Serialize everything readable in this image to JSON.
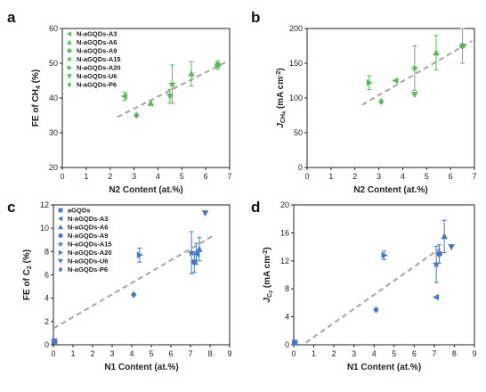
{
  "chart_data": [
    {
      "panel": "a",
      "type": "scatter",
      "xlabel": "N2 Content (at.%)",
      "ylabel_parts": [
        "FE of CH",
        "4",
        " (%)"
      ],
      "xlim": [
        0,
        7
      ],
      "ylim": [
        20,
        60
      ],
      "xticks": [
        0,
        1,
        2,
        3,
        4,
        5,
        6,
        7
      ],
      "yticks": [
        20,
        30,
        40,
        50,
        60
      ],
      "color": "#5cb85c",
      "legend_position": "top-left",
      "legend": [
        "N-aGQDs-A3",
        "N-aGQDs-A6",
        "N-aGQDs-A9",
        "N-aGQDs-A15",
        "N-aGQDs-A20",
        "N-aGQDs-U6",
        "N-aGQDs-P6"
      ],
      "markers": [
        "tri-left",
        "tri-up",
        "circle",
        "star",
        "tri-right",
        "tri-down",
        "diamond"
      ],
      "points": [
        {
          "marker": "tri-left",
          "x": 2.6,
          "y": 40.5,
          "err": 1.2
        },
        {
          "marker": "diamond",
          "x": 3.1,
          "y": 35,
          "err": 0
        },
        {
          "marker": "tri-up",
          "x": 3.7,
          "y": 38.5,
          "err": 0
        },
        {
          "marker": "tri-down",
          "x": 4.5,
          "y": 40.5,
          "err": 2.0
        },
        {
          "marker": "star",
          "x": 4.6,
          "y": 44,
          "err": 5.5
        },
        {
          "marker": "tri-up",
          "x": 5.4,
          "y": 47,
          "err": 3.5
        },
        {
          "marker": "circle",
          "x": 6.5,
          "y": 49.5,
          "err": 1.2
        }
      ],
      "fit_line": {
        "x": [
          2.3,
          6.9
        ],
        "y": [
          34.5,
          50.5
        ]
      }
    },
    {
      "panel": "b",
      "type": "scatter",
      "xlabel": "N2 Content (at.%)",
      "ylabel_parts": [
        "J",
        "CH",
        "4",
        " (mA cm",
        "-2",
        ")"
      ],
      "xlim": [
        0,
        7
      ],
      "ylim": [
        0,
        200
      ],
      "xticks": [
        0,
        1,
        2,
        3,
        4,
        5,
        6,
        7
      ],
      "yticks": [
        0,
        50,
        100,
        150,
        200
      ],
      "color": "#5cb85c",
      "points": [
        {
          "marker": "tri-right",
          "x": 2.6,
          "y": 122,
          "err": 10
        },
        {
          "marker": "diamond",
          "x": 3.1,
          "y": 95,
          "err": 0
        },
        {
          "marker": "tri-left",
          "x": 3.7,
          "y": 125,
          "err": 0
        },
        {
          "marker": "tri-down",
          "x": 4.5,
          "y": 105,
          "err": 0
        },
        {
          "marker": "star",
          "x": 4.5,
          "y": 143,
          "err": 32
        },
        {
          "marker": "tri-up",
          "x": 5.4,
          "y": 165,
          "err": 25
        },
        {
          "marker": "circle",
          "x": 6.5,
          "y": 175,
          "err": 25
        }
      ],
      "fit_line": {
        "x": [
          2.3,
          6.9
        ],
        "y": [
          90,
          182
        ]
      }
    },
    {
      "panel": "c",
      "type": "scatter",
      "xlabel": "N1 Content (at.%)",
      "ylabel_parts": [
        "FE of C",
        "2",
        " (%)"
      ],
      "xlim": [
        0,
        9
      ],
      "ylim": [
        0,
        12
      ],
      "xticks": [
        0,
        1,
        2,
        3,
        4,
        5,
        6,
        7,
        8,
        9
      ],
      "yticks": [
        0,
        2,
        4,
        6,
        8,
        10,
        12
      ],
      "color": "#4a78c2",
      "legend_position": "top-left",
      "legend": [
        "aGQDs",
        "N-aGQDs-A3",
        "N-aGQDs-A6",
        "N-aGQDs-A9",
        "N-aGQDs-A15",
        "N-aGQDs-A20",
        "N-aGQDs-U6",
        "N-aGQDs-P6"
      ],
      "markers": [
        "square",
        "tri-left",
        "tri-up",
        "circle",
        "star",
        "tri-right",
        "tri-down",
        "diamond"
      ],
      "points": [
        {
          "marker": "square",
          "x": 0.05,
          "y": 0.3,
          "err": 0
        },
        {
          "marker": "diamond",
          "x": 4.1,
          "y": 4.3,
          "err": 0
        },
        {
          "marker": "tri-right",
          "x": 4.4,
          "y": 7.7,
          "err": 0.6
        },
        {
          "marker": "star",
          "x": 7.05,
          "y": 7.9,
          "err": 1.8
        },
        {
          "marker": "circle",
          "x": 7.2,
          "y": 7.1,
          "err": 0.9
        },
        {
          "marker": "tri-left",
          "x": 7.3,
          "y": 7.8,
          "err": 0.9
        },
        {
          "marker": "tri-up",
          "x": 7.45,
          "y": 8.2,
          "err": 1.0
        },
        {
          "marker": "tri-down",
          "x": 7.75,
          "y": 11.3,
          "err": 0
        }
      ],
      "fit_line": {
        "x": [
          0,
          8.1
        ],
        "y": [
          1.4,
          9.3
        ]
      }
    },
    {
      "panel": "d",
      "type": "scatter",
      "xlabel": "N1 Content (at.%)",
      "ylabel_parts": [
        "J",
        "C",
        "2",
        " (mA cm",
        "-2",
        ")"
      ],
      "xlim": [
        0,
        9
      ],
      "ylim": [
        0,
        20
      ],
      "xticks": [
        0,
        1,
        2,
        3,
        4,
        5,
        6,
        7,
        8,
        9
      ],
      "yticks": [
        0,
        4,
        8,
        12,
        16,
        20
      ],
      "color": "#4a78c2",
      "points": [
        {
          "marker": "square",
          "x": 0.05,
          "y": 0.3,
          "err": 0
        },
        {
          "marker": "diamond",
          "x": 4.1,
          "y": 5.0,
          "err": 0
        },
        {
          "marker": "tri-right",
          "x": 4.5,
          "y": 12.8,
          "err": 0.6
        },
        {
          "marker": "tri-left",
          "x": 7.1,
          "y": 6.8,
          "err": 0
        },
        {
          "marker": "star",
          "x": 7.1,
          "y": 11.5,
          "err": 2.6
        },
        {
          "marker": "circle",
          "x": 7.25,
          "y": 13.0,
          "err": 1.3
        },
        {
          "marker": "tri-up",
          "x": 7.5,
          "y": 15.5,
          "err": 2.3
        },
        {
          "marker": "tri-down",
          "x": 7.85,
          "y": 14.0,
          "err": 0
        }
      ],
      "fit_line": {
        "x": [
          0.6,
          7.3
        ],
        "y": [
          0.3,
          13.8
        ]
      }
    }
  ]
}
